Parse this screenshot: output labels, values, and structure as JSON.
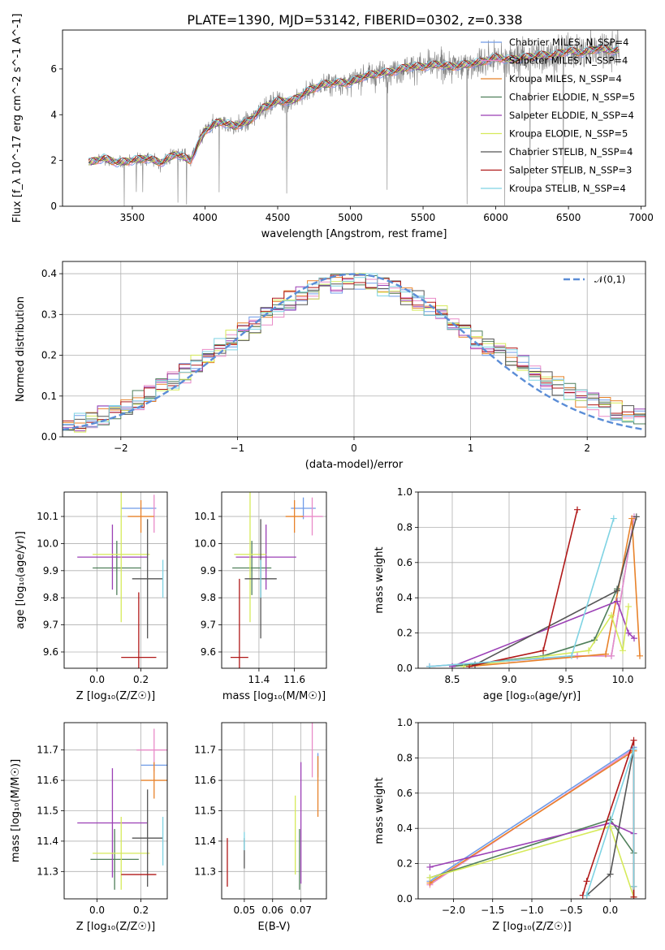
{
  "figure": {
    "title": "PLATE=1390, MJD=53142, FIBERID=0302, z=0.338"
  },
  "models": [
    {
      "label": "Chabrier MILES, N_SSP=4",
      "color": "#6f9be8"
    },
    {
      "label": "Salpeter MILES, N_SSP=4",
      "color": "#e98bc8"
    },
    {
      "label": "Kroupa MILES, N_SSP=4",
      "color": "#e8822a"
    },
    {
      "label": "Chabrier ELODIE, N_SSP=5",
      "color": "#4f7f5a"
    },
    {
      "label": "Salpeter ELODIE, N_SSP=4",
      "color": "#9b3fb5"
    },
    {
      "label": "Kroupa ELODIE, N_SSP=5",
      "color": "#d6ea5a"
    },
    {
      "label": "Chabrier STELIB, N_SSP=4",
      "color": "#555555"
    },
    {
      "label": "Salpeter STELIB, N_SSP=3",
      "color": "#b01818"
    },
    {
      "label": "Kroupa STELIB, N_SSP=4",
      "color": "#7fd3e3"
    }
  ],
  "chart_data": [
    {
      "id": "spectrum",
      "type": "line",
      "xlabel": "wavelength [Angstrom, rest frame]",
      "ylabel": "Flux [f_λ 10^-17 erg cm^-2 s^-1 A^-1]",
      "xlim": [
        3020,
        7030
      ],
      "ylim": [
        0,
        7.7
      ],
      "xticks": [
        3500,
        4000,
        4500,
        5000,
        5500,
        6000,
        6500,
        7000
      ],
      "yticks": [
        0,
        2,
        4,
        6
      ],
      "data_color": "#808080",
      "continuum": {
        "x": [
          3200,
          3300,
          3400,
          3500,
          3600,
          3700,
          3800,
          3900,
          4000,
          4100,
          4200,
          4300,
          4400,
          4500,
          4600,
          4700,
          4800,
          4900,
          5000,
          5100,
          5200,
          5300,
          5400,
          5500,
          5600,
          5700,
          5800,
          5900,
          6000,
          6100,
          6200,
          6300,
          6400,
          6500,
          6600,
          6700,
          6800,
          6850
        ],
        "y": [
          1.9,
          2.1,
          1.9,
          2.0,
          2.1,
          1.9,
          2.3,
          2.0,
          3.3,
          3.7,
          3.5,
          3.7,
          4.3,
          4.6,
          4.6,
          5.0,
          5.3,
          5.4,
          5.4,
          5.7,
          5.8,
          5.9,
          6.1,
          6.1,
          6.2,
          6.1,
          6.2,
          6.3,
          6.5,
          6.4,
          6.5,
          6.6,
          6.6,
          6.8,
          6.7,
          6.9,
          6.8,
          6.8
        ]
      },
      "legend": "upper right"
    },
    {
      "id": "residuals",
      "type": "histogram",
      "xlabel": "(data-model)/error",
      "ylabel": "Normed distribution",
      "xlim": [
        -2.5,
        2.5
      ],
      "ylim": [
        0,
        0.43
      ],
      "xticks": [
        -2,
        -1,
        0,
        1,
        2
      ],
      "yticks": [
        0.0,
        0.1,
        0.2,
        0.3,
        0.4
      ],
      "bin_width": 0.1,
      "reference": {
        "label": "𝒩(0,1)",
        "mean": 0,
        "sigma": 1,
        "color": "#5b8dd6"
      },
      "legend": "upper right"
    },
    {
      "id": "age-vs-Z",
      "type": "errorbar",
      "xlabel": "Z [log₁₀(Z/Z☉)]",
      "ylabel": "age  [log₁₀(age/yr)]",
      "xlim": [
        -0.15,
        0.32
      ],
      "ylim": [
        9.54,
        10.19
      ],
      "xticks": [
        0.0,
        0.2
      ],
      "yticks": [
        9.6,
        9.7,
        9.8,
        9.9,
        10.0,
        10.1
      ],
      "points": [
        {
          "m": 0,
          "x": 0.19,
          "xe": 0.08,
          "y": 10.13,
          "ye": 0.0
        },
        {
          "m": 1,
          "x": 0.26,
          "xe": 0.0,
          "y": 10.11,
          "ye": 0.07
        },
        {
          "m": 2,
          "x": 0.2,
          "xe": 0.06,
          "y": 10.1,
          "ye": 0.06
        },
        {
          "m": 3,
          "x": 0.09,
          "xe": 0.11,
          "y": 9.91,
          "ye": 0.1
        },
        {
          "m": 4,
          "x": 0.07,
          "xe": 0.16,
          "y": 9.95,
          "ye": 0.12
        },
        {
          "m": 5,
          "x": 0.11,
          "xe": 0.13,
          "y": 9.96,
          "ye": 0.25
        },
        {
          "m": 6,
          "x": 0.23,
          "xe": 0.07,
          "y": 9.87,
          "ye": 0.22
        },
        {
          "m": 7,
          "x": 0.19,
          "xe": 0.08,
          "y": 9.58,
          "ye": 0.24
        },
        {
          "m": 8,
          "x": 0.3,
          "xe": 0.0,
          "y": 9.87,
          "ye": 0.07
        }
      ]
    },
    {
      "id": "age-vs-mass",
      "type": "errorbar",
      "xlabel": "mass [log₁₀(M/M☉)]",
      "ylabel": "",
      "xlim": [
        11.19,
        11.78
      ],
      "ylim": [
        9.54,
        10.19
      ],
      "xticks": [
        11.4,
        11.6
      ],
      "yticks": [
        9.6,
        9.7,
        9.8,
        9.9,
        10.0,
        10.1
      ],
      "points": [
        {
          "m": 0,
          "x": 11.65,
          "xe": 0.07,
          "y": 10.13,
          "ye": 0.04
        },
        {
          "m": 1,
          "x": 11.7,
          "xe": 0.06,
          "y": 10.1,
          "ye": 0.07
        },
        {
          "m": 2,
          "x": 11.6,
          "xe": 0.05,
          "y": 10.1,
          "ye": 0.06
        },
        {
          "m": 3,
          "x": 11.36,
          "xe": 0.11,
          "y": 9.91,
          "ye": 0.1
        },
        {
          "m": 4,
          "x": 11.44,
          "xe": 0.17,
          "y": 9.95,
          "ye": 0.12
        },
        {
          "m": 5,
          "x": 11.35,
          "xe": 0.09,
          "y": 9.96,
          "ye": 0.25
        },
        {
          "m": 6,
          "x": 11.41,
          "xe": 0.09,
          "y": 9.87,
          "ye": 0.22
        },
        {
          "m": 7,
          "x": 11.29,
          "xe": 0.05,
          "y": 9.58,
          "ye": 0.29
        },
        {
          "m": 8,
          "x": 11.41,
          "xe": 0.0,
          "y": 9.87,
          "ye": 0.07
        }
      ]
    },
    {
      "id": "weight-vs-age",
      "type": "line",
      "xlabel": "age  [log₁₀(age/yr)]",
      "ylabel": "mass weight",
      "xlim": [
        8.2,
        10.2
      ],
      "ylim": [
        0,
        1.0
      ],
      "xticks": [
        8.5,
        9.0,
        9.5,
        10.0
      ],
      "yticks": [
        0.0,
        0.2,
        0.4,
        0.6,
        0.8,
        1.0
      ],
      "series": [
        {
          "m": 0,
          "x": [
            8.3,
            9.6,
            9.9,
            10.1
          ],
          "y": [
            0.01,
            0.07,
            0.07,
            0.86
          ]
        },
        {
          "m": 1,
          "x": [
            8.3,
            9.6,
            9.9,
            10.1
          ],
          "y": [
            0.01,
            0.07,
            0.07,
            0.86
          ]
        },
        {
          "m": 2,
          "x": [
            8.65,
            9.85,
            10.08,
            10.15
          ],
          "y": [
            0.01,
            0.08,
            0.85,
            0.07
          ]
        },
        {
          "m": 3,
          "x": [
            8.5,
            9.3,
            9.75,
            9.95
          ],
          "y": [
            0.01,
            0.07,
            0.16,
            0.45
          ]
        },
        {
          "m": 4,
          "x": [
            8.5,
            9.95,
            10.05,
            10.1
          ],
          "y": [
            0.01,
            0.38,
            0.2,
            0.17
          ]
        },
        {
          "m": 5,
          "x": [
            8.6,
            9.7,
            9.9,
            10.0,
            10.05
          ],
          "y": [
            0.01,
            0.1,
            0.3,
            0.1,
            0.35
          ]
        },
        {
          "m": 6,
          "x": [
            8.7,
            9.95,
            10.12
          ],
          "y": [
            0.02,
            0.44,
            0.86
          ]
        },
        {
          "m": 7,
          "x": [
            8.65,
            9.3,
            9.6
          ],
          "y": [
            0.01,
            0.1,
            0.9
          ]
        },
        {
          "m": 8,
          "x": [
            8.3,
            9.55,
            9.92
          ],
          "y": [
            0.01,
            0.07,
            0.85
          ]
        }
      ]
    },
    {
      "id": "mass-vs-Z",
      "type": "errorbar",
      "xlabel": "Z [log₁₀(Z/Z☉)]",
      "ylabel": "mass [log₁₀(M/M☉)]",
      "xlim": [
        -0.15,
        0.32
      ],
      "ylim": [
        11.21,
        11.79
      ],
      "xticks": [
        0.0,
        0.2
      ],
      "yticks": [
        11.3,
        11.4,
        11.5,
        11.6,
        11.7
      ],
      "points": [
        {
          "m": 0,
          "x": 0.26,
          "xe": 0.06,
          "y": 11.65,
          "ye": 0.0
        },
        {
          "m": 1,
          "x": 0.26,
          "xe": 0.08,
          "y": 11.7,
          "ye": 0.07
        },
        {
          "m": 2,
          "x": 0.26,
          "xe": 0.06,
          "y": 11.6,
          "ye": 0.06
        },
        {
          "m": 3,
          "x": 0.08,
          "xe": 0.11,
          "y": 11.34,
          "ye": 0.1
        },
        {
          "m": 4,
          "x": 0.07,
          "xe": 0.16,
          "y": 11.46,
          "ye": 0.18
        },
        {
          "m": 5,
          "x": 0.11,
          "xe": 0.13,
          "y": 11.36,
          "ye": 0.12
        },
        {
          "m": 6,
          "x": 0.23,
          "xe": 0.07,
          "y": 11.41,
          "ye": 0.16
        },
        {
          "m": 7,
          "x": 0.19,
          "xe": 0.08,
          "y": 11.29,
          "ye": 0.0
        },
        {
          "m": 8,
          "x": 0.3,
          "xe": 0.0,
          "y": 11.4,
          "ye": 0.08
        }
      ]
    },
    {
      "id": "mass-vs-EBV",
      "type": "errorbar",
      "xlabel": "E(B-V)",
      "ylabel": "",
      "xlim": [
        0.042,
        0.079
      ],
      "ylim": [
        11.21,
        11.79
      ],
      "xticks": [
        0.05,
        0.06,
        0.07
      ],
      "yticks": [
        11.3,
        11.4,
        11.5,
        11.6,
        11.7
      ],
      "points": [
        {
          "m": 0,
          "x": 0.076,
          "xe": 0.0,
          "y": 11.65,
          "ye": 0.04
        },
        {
          "m": 1,
          "x": 0.074,
          "xe": 0.0,
          "y": 11.7,
          "ye": 0.09
        },
        {
          "m": 2,
          "x": 0.076,
          "xe": 0.0,
          "y": 11.58,
          "ye": 0.1
        },
        {
          "m": 3,
          "x": 0.0695,
          "xe": 0.0,
          "y": 11.34,
          "ye": 0.1
        },
        {
          "m": 4,
          "x": 0.07,
          "xe": 0.0,
          "y": 11.46,
          "ye": 0.2
        },
        {
          "m": 5,
          "x": 0.068,
          "xe": 0.0,
          "y": 11.42,
          "ye": 0.13
        },
        {
          "m": 6,
          "x": 0.05,
          "xe": 0.0,
          "y": 11.36,
          "ye": 0.05
        },
        {
          "m": 7,
          "x": 0.044,
          "xe": 0.0,
          "y": 11.33,
          "ye": 0.08
        },
        {
          "m": 8,
          "x": 0.05,
          "xe": 0.0,
          "y": 11.4,
          "ye": 0.03
        }
      ]
    },
    {
      "id": "weight-vs-Z",
      "type": "line",
      "xlabel": "Z [log₁₀(Z/Z☉)]",
      "ylabel": "mass weight",
      "xlim": [
        -2.45,
        0.45
      ],
      "ylim": [
        0,
        1.0
      ],
      "xticks": [
        -2.0,
        -1.5,
        -1.0,
        -0.5,
        0.0
      ],
      "yticks": [
        0.0,
        0.2,
        0.4,
        0.6,
        0.8,
        1.0
      ],
      "series": [
        {
          "m": 0,
          "x": [
            -2.3,
            0.3,
            0.3
          ],
          "y": [
            0.1,
            0.86,
            0.07
          ]
        },
        {
          "m": 1,
          "x": [
            -2.3,
            0.3,
            0.3
          ],
          "y": [
            0.08,
            0.85,
            0.07
          ]
        },
        {
          "m": 2,
          "x": [
            -2.3,
            0.3,
            0.3
          ],
          "y": [
            0.09,
            0.84,
            0.07
          ]
        },
        {
          "m": 3,
          "x": [
            -2.3,
            0.0,
            0.3,
            0.3
          ],
          "y": [
            0.12,
            0.45,
            0.26,
            0.01
          ]
        },
        {
          "m": 4,
          "x": [
            -2.3,
            0.0,
            0.3
          ],
          "y": [
            0.18,
            0.43,
            0.37
          ]
        },
        {
          "m": 5,
          "x": [
            -2.3,
            0.0,
            0.3
          ],
          "y": [
            0.12,
            0.41,
            0.01
          ]
        },
        {
          "m": 6,
          "x": [
            -0.3,
            0.0,
            0.3
          ],
          "y": [
            0.02,
            0.14,
            0.85
          ]
        },
        {
          "m": 7,
          "x": [
            -0.35,
            -0.3,
            0.3,
            0.3
          ],
          "y": [
            0.02,
            0.1,
            0.9,
            0.01
          ]
        },
        {
          "m": 8,
          "x": [
            -0.3,
            0.3,
            0.3
          ],
          "y": [
            0.02,
            0.85,
            0.07
          ]
        }
      ]
    }
  ]
}
